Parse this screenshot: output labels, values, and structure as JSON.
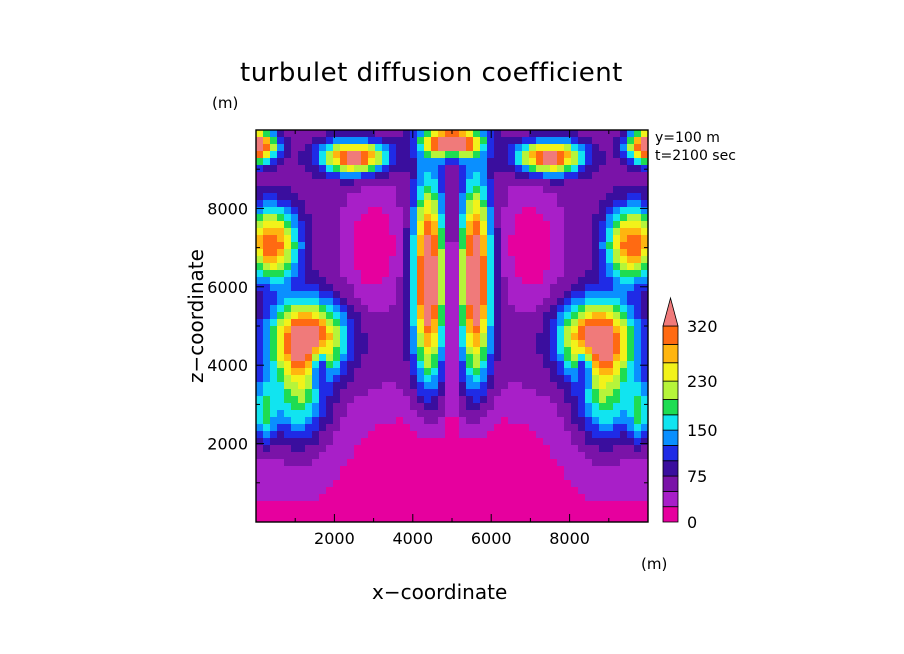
{
  "chart_data": {
    "type": "heatmap",
    "title": "turbulet diffusion coefficient",
    "xlabel": "x−coordinate",
    "ylabel": "z−coordinate",
    "x_unit": "(m)",
    "z_unit": "(m)",
    "annotations": [
      "y=100 m",
      "t=2100 sec"
    ],
    "xlim": [
      0,
      10000
    ],
    "ylim": [
      0,
      10000
    ],
    "xticks": [
      2000,
      4000,
      6000,
      8000
    ],
    "xtick_labels": [
      "2000",
      "4000",
      "6000",
      "8000"
    ],
    "yticks": [
      2000,
      4000,
      6000,
      8000
    ],
    "ytick_labels": [
      "2000",
      "4000",
      "6000",
      "8000"
    ],
    "colorbar": {
      "levels": [
        0,
        25,
        50,
        75,
        100,
        125,
        150,
        175,
        200,
        230,
        260,
        290,
        320
      ],
      "labels": [
        "0",
        "75",
        "150",
        "230",
        "320"
      ],
      "label_values": [
        0,
        75,
        150,
        230,
        320
      ],
      "colors": [
        "#e6009e",
        "#a81fc8",
        "#7a13a8",
        "#3a0e9e",
        "#1f2be6",
        "#0a8fff",
        "#11e4f0",
        "#1edc52",
        "#b6f43a",
        "#f2f21a",
        "#ffb50f",
        "#ff6a12",
        "#f22020",
        "#f07a7a"
      ],
      "extend": "max"
    }
  }
}
